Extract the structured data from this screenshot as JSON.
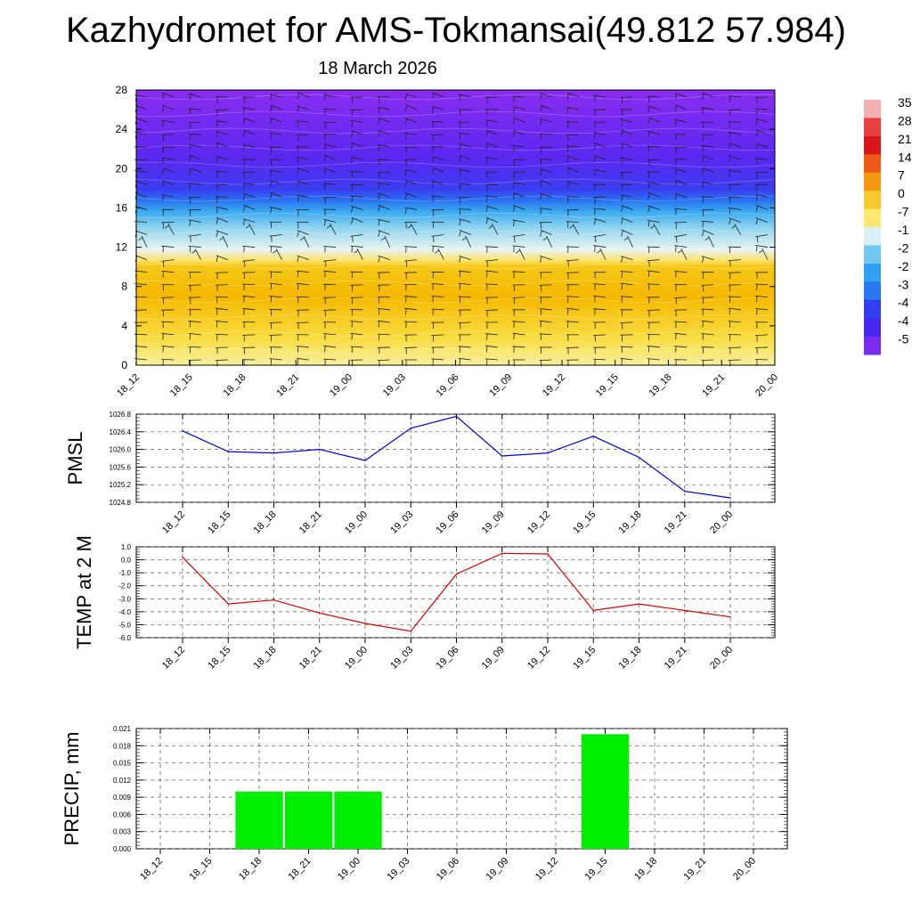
{
  "title": "Kazhydromet for AMS-Tokmansai(49.812 57.984)",
  "subtitle": "18 March 2026",
  "time_labels": [
    "18_12",
    "18_15",
    "18_18",
    "18_21",
    "19_00",
    "19_03",
    "19_06",
    "19_09",
    "19_12",
    "19_15",
    "19_18",
    "19_21",
    "20_00"
  ],
  "chart_data": [
    {
      "type": "heatmap",
      "y": [
        0,
        28
      ],
      "yticks": [
        0,
        4,
        8,
        12,
        16,
        20,
        24,
        28
      ],
      "colorbar_labels": [
        "35",
        "28",
        "21",
        "14",
        "7",
        "0",
        "-7",
        "-1",
        "-2",
        "-2",
        "-3",
        "-4",
        "-4",
        "-5"
      ],
      "color_stops": [
        "#f7f0a0",
        "#f8dc40",
        "#f5b800",
        "#f5c818",
        "#fde26a",
        "#e8f4f0",
        "#8fd4f0",
        "#38a8f0",
        "#2a6ff0",
        "#3b3cf0",
        "#5a28f0",
        "#8a2cf0"
      ]
    },
    {
      "type": "line",
      "ylabel": "PMSL",
      "yticks": [
        "1024.8",
        "1025.2",
        "1025.6",
        "1026.0",
        "1026.4",
        "1026.8"
      ],
      "ylim": [
        1024.8,
        1026.8
      ],
      "color": "#0000dd",
      "x": [
        "18_12",
        "18_15",
        "18_18",
        "18_21",
        "19_00",
        "19_03",
        "19_06",
        "19_09",
        "19_12",
        "19_15",
        "19_18",
        "19_21",
        "20_00"
      ],
      "values": [
        1026.42,
        1025.95,
        1025.92,
        1026.0,
        1025.75,
        1026.48,
        1026.75,
        1025.85,
        1025.92,
        1026.3,
        1025.82,
        1025.05,
        1024.9
      ]
    },
    {
      "type": "line",
      "ylabel": "TEMP at 2 M",
      "yticks": [
        "1.0",
        "0.0",
        "-1.0",
        "-2.0",
        "-3.0",
        "-4.0",
        "-5.0",
        "-6.0"
      ],
      "ylim": [
        -6.0,
        1.0
      ],
      "color": "#dd0000",
      "x": [
        "18_12",
        "18_15",
        "18_18",
        "18_21",
        "19_00",
        "19_03",
        "19_06",
        "19_09",
        "19_12",
        "19_15",
        "19_18",
        "19_21",
        "20_00"
      ],
      "values": [
        0.2,
        -3.4,
        -3.1,
        -4.1,
        -4.9,
        -5.5,
        -1.1,
        0.5,
        0.45,
        -3.9,
        -3.4,
        -3.9,
        -4.4
      ]
    },
    {
      "type": "bar",
      "ylabel": "PRECIP, mm",
      "yticks": [
        "0.021",
        "0.018",
        "0.015",
        "0.012",
        "0.009",
        "0.006",
        "0.003",
        "0.000"
      ],
      "ylim": [
        0,
        0.021
      ],
      "color": "#00ee00",
      "categories": [
        "18_12",
        "18_15",
        "18_18",
        "18_21",
        "19_00",
        "19_03",
        "19_06",
        "19_09",
        "19_12",
        "19_15",
        "19_18",
        "19_21",
        "20_00"
      ],
      "values": [
        0,
        0,
        0.01,
        0.01,
        0.01,
        0,
        0,
        0,
        0,
        0.02,
        0,
        0,
        0
      ]
    }
  ]
}
